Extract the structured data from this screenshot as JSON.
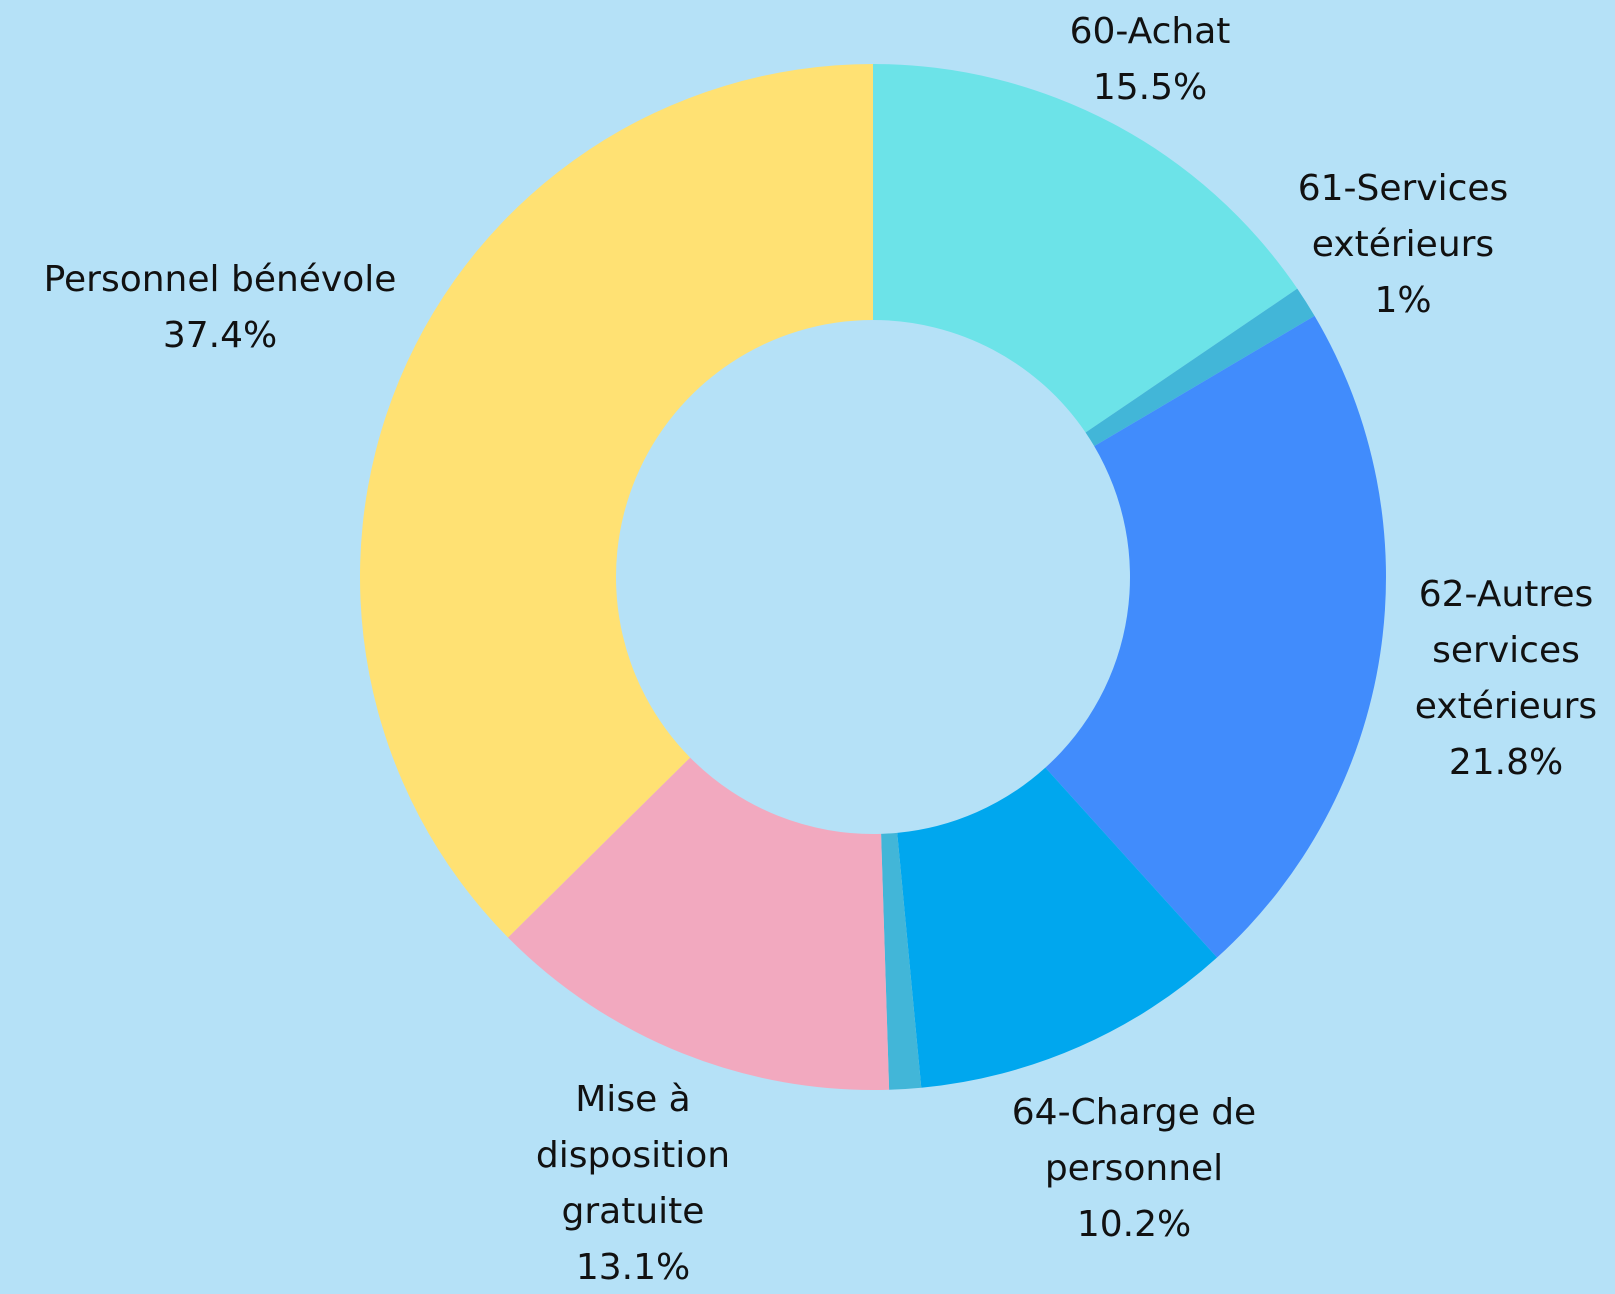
{
  "colors": {
    "background": "#b5e1f7",
    "label_text": "#111111"
  },
  "chart_data": {
    "type": "pie",
    "donut": true,
    "title": "",
    "start_angle_deg": 0,
    "direction": "clockwise",
    "slices": [
      {
        "lines": [
          "60-Achat"
        ],
        "value_label": "15.5%",
        "value": 15.5,
        "color": "#6ce3e8"
      },
      {
        "lines": [
          "61-Services",
          "extérieurs"
        ],
        "value_label": "1%",
        "value": 1.0,
        "color": "#42b6d8"
      },
      {
        "lines": [
          "62-Autres",
          "services",
          "extérieurs"
        ],
        "value_label": "21.8%",
        "value": 21.8,
        "color": "#418cfc"
      },
      {
        "lines": [
          "64-Charge de",
          "personnel"
        ],
        "value_label": "10.2%",
        "value": 10.2,
        "color": "#00a7ee"
      },
      {
        "lines": [],
        "value_label": "",
        "value": 1.0,
        "color": "#42b6d8"
      },
      {
        "lines": [
          "Mise à",
          "disposition",
          "gratuite"
        ],
        "value_label": "13.1%",
        "value": 13.1,
        "color": "#f2a9bf"
      },
      {
        "lines": [
          "Personnel bénévole"
        ],
        "value_label": "37.4%",
        "value": 37.4,
        "color": "#ffe173"
      }
    ]
  }
}
